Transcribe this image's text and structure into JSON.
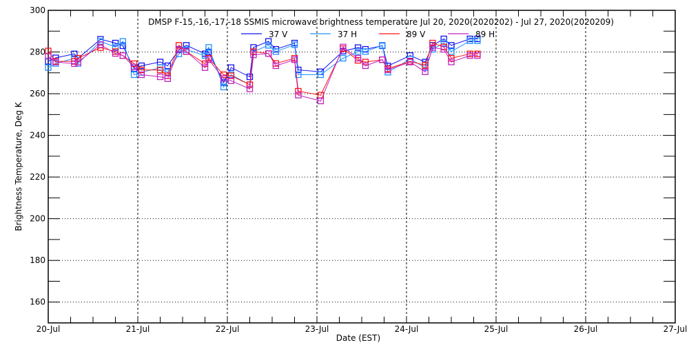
{
  "chart_data": {
    "type": "line",
    "title": "DMSP F-15,-16,-17,-18 SSMIS microwave brightness temperature Jul 20, 2020(2020202) - Jul 27, 2020(2020209)",
    "xlabel": "Date (EST)",
    "ylabel": "Brightness Temperature, Deg K",
    "ylim": [
      150,
      300
    ],
    "yticks": [
      160,
      180,
      200,
      220,
      240,
      260,
      280,
      300
    ],
    "xlim": [
      "2020-07-20T00:00",
      "2020-07-27T00:00"
    ],
    "xticks": [
      {
        "date": "2020-07-20T00:00",
        "label": "20-Jul"
      },
      {
        "date": "2020-07-21T00:00",
        "label": "21-Jul"
      },
      {
        "date": "2020-07-22T00:00",
        "label": "22-Jul"
      },
      {
        "date": "2020-07-23T00:00",
        "label": "23-Jul"
      },
      {
        "date": "2020-07-24T00:00",
        "label": "24-Jul"
      },
      {
        "date": "2020-07-25T00:00",
        "label": "25-Jul"
      },
      {
        "date": "2020-07-26T00:00",
        "label": "26-Jul"
      },
      {
        "date": "2020-07-27T00:00",
        "label": "27-Jul"
      }
    ],
    "grid": true,
    "legend_placement": "top",
    "marker": "square",
    "x": [
      "2020-07-20T00:00",
      "2020-07-20T02:00",
      "2020-07-20T07:00",
      "2020-07-20T08:00",
      "2020-07-20T14:00",
      "2020-07-20T18:00",
      "2020-07-20T20:00",
      "2020-07-20T23:00",
      "2020-07-21T01:00",
      "2020-07-21T06:00",
      "2020-07-21T08:00",
      "2020-07-21T11:00",
      "2020-07-21T13:00",
      "2020-07-21T18:00",
      "2020-07-21T19:00",
      "2020-07-21T23:00",
      "2020-07-22T01:00",
      "2020-07-22T06:00",
      "2020-07-22T07:00",
      "2020-07-22T11:00",
      "2020-07-22T13:00",
      "2020-07-22T18:00",
      "2020-07-22T19:00",
      "2020-07-23T01:00",
      "2020-07-23T07:00",
      "2020-07-23T11:00",
      "2020-07-23T13:00",
      "2020-07-23T17:30",
      "2020-07-23T19:00",
      "2020-07-24T01:00",
      "2020-07-24T05:00",
      "2020-07-24T07:00",
      "2020-07-24T10:00",
      "2020-07-24T12:00",
      "2020-07-24T17:00",
      "2020-07-24T19:00"
    ],
    "series": [
      {
        "name": "37 V",
        "color": "#1010f0",
        "values": [
          275.5,
          277.2,
          279.1,
          277,
          286.1,
          284.3,
          283,
          272,
          273.4,
          275.2,
          273.4,
          281.1,
          283.2,
          279.1,
          280,
          265.3,
          272.5,
          268.1,
          282.2,
          285.1,
          281.3,
          284.3,
          271.4,
          270.5,
          280.4,
          282.1,
          281.3,
          283,
          273.3,
          278.3,
          275.2,
          283.2,
          286.3,
          283.2,
          286.3,
          286.3
        ]
      },
      {
        "name": "37 H",
        "color": "#1e90ff",
        "values": [
          272.5,
          274.5,
          277,
          274.5,
          285.1,
          282.4,
          285.1,
          269.1,
          270.2,
          272.5,
          270.2,
          279.1,
          281.1,
          278.3,
          282.2,
          263.2,
          269.1,
          264.3,
          280.2,
          283.2,
          280.2,
          283.5,
          269.1,
          269.1,
          277,
          280.2,
          280.2,
          283.2,
          270.3,
          276.6,
          272.5,
          281.3,
          284.3,
          280.2,
          285.4,
          285.4
        ]
      },
      {
        "name": "89 V",
        "color": "#ff1010",
        "values": [
          280.5,
          275.5,
          275.5,
          277,
          282.1,
          280.2,
          278.3,
          274.4,
          271.4,
          271.4,
          268.6,
          283.2,
          280.2,
          274.4,
          277,
          269.1,
          268.6,
          264.3,
          280.2,
          279.3,
          274.5,
          277,
          261.2,
          259.3,
          281.6,
          276,
          275.2,
          276.3,
          272,
          275.5,
          273.6,
          284.3,
          282.4,
          277,
          279.1,
          279.1
        ]
      },
      {
        "name": "89 H",
        "color": "#c020c0",
        "values": [
          278,
          275.2,
          274.4,
          275.2,
          283.5,
          279.3,
          278.3,
          272.8,
          269.1,
          268.1,
          267.2,
          281.3,
          280.2,
          272.5,
          276.3,
          267.3,
          266.2,
          262.3,
          278.6,
          279.3,
          273.4,
          276.3,
          259.3,
          256.5,
          282.4,
          277,
          273.4,
          276.3,
          271.4,
          275.2,
          270.5,
          282.1,
          281.3,
          275.2,
          278.3,
          278.3
        ]
      }
    ]
  }
}
